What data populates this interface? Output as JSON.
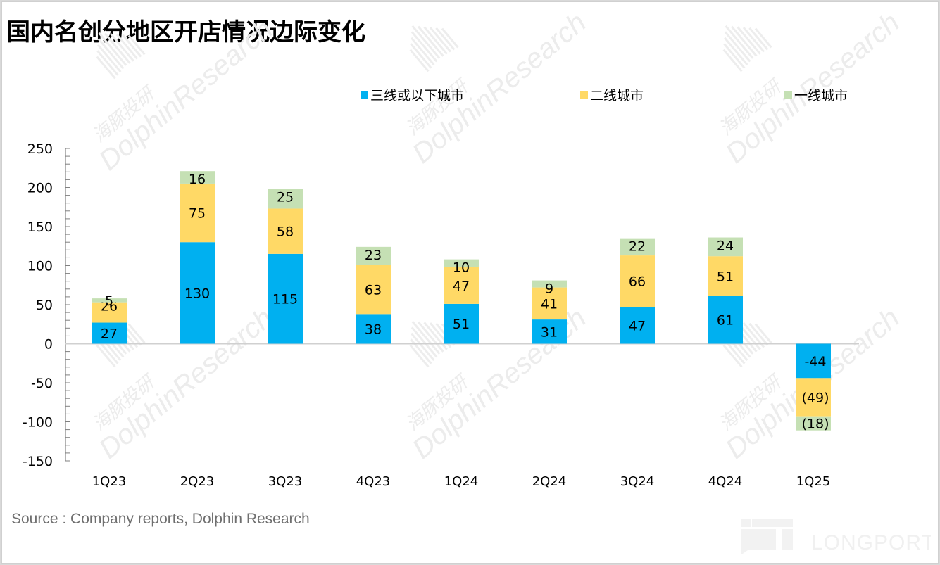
{
  "title": "国内名创分地区开店情况边际变化",
  "source": "Source : Company reports, Dolphin Research",
  "watermark": {
    "cn": "海豚投研",
    "en": "DolphinResearch",
    "brand": "LONGPORT"
  },
  "colors": {
    "tier3": "#00b0f0",
    "tier2": "#ffd966",
    "tier1": "#c5e0b4",
    "axis": "#808080",
    "zero_line": "#d0d0d0"
  },
  "chart_data": {
    "type": "bar",
    "stacked": true,
    "title": "国内名创分地区开店情况边际变化",
    "xlabel": "",
    "ylabel": "",
    "ylim": [
      -150,
      250
    ],
    "yticks": [
      250,
      200,
      150,
      100,
      50,
      0,
      -50,
      -100,
      -150
    ],
    "ytick_labels": [
      "250",
      "200",
      "150",
      "100",
      "50",
      "0",
      "-50",
      "-100",
      "-150"
    ],
    "minor_tick_step": 10,
    "categories": [
      "1Q23",
      "2Q23",
      "3Q23",
      "4Q23",
      "1Q24",
      "2Q24",
      "3Q24",
      "4Q24",
      "1Q25"
    ],
    "legend_position": "top",
    "grid": false,
    "series": [
      {
        "name": "三线或以下城市",
        "color": "#00b0f0",
        "values": [
          27,
          130,
          115,
          38,
          51,
          31,
          47,
          61,
          -44
        ],
        "labels": [
          "27",
          "130",
          "115",
          "38",
          "51",
          "31",
          "47",
          "61",
          "-44"
        ]
      },
      {
        "name": "二线城市",
        "color": "#ffd966",
        "values": [
          26,
          75,
          58,
          63,
          47,
          41,
          66,
          51,
          -49
        ],
        "labels": [
          "26",
          "75",
          "58",
          "63",
          "47",
          "41",
          "66",
          "51",
          "(49)"
        ]
      },
      {
        "name": "一线城市",
        "color": "#c5e0b4",
        "values": [
          5,
          16,
          25,
          23,
          10,
          9,
          22,
          24,
          -18
        ],
        "labels": [
          "5",
          "16",
          "25",
          "23",
          "10",
          "9",
          "22",
          "24",
          "(18)"
        ]
      }
    ]
  }
}
